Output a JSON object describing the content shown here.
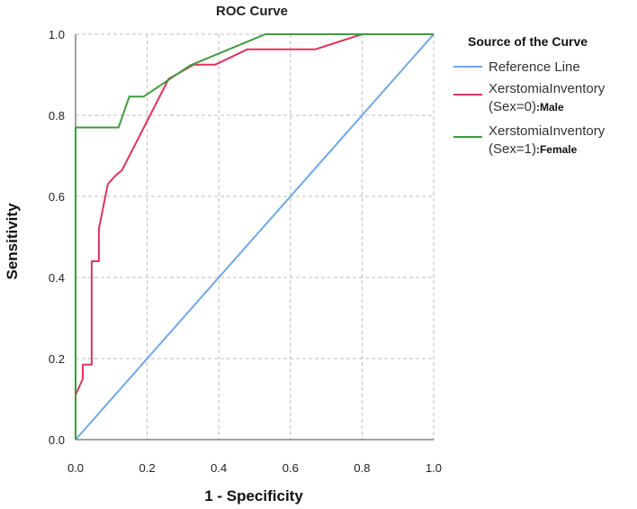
{
  "chart_data": {
    "type": "line",
    "title": "ROC Curve",
    "xlabel": "1 - Specificity",
    "ylabel": "Sensitivity",
    "xlim": [
      0,
      1
    ],
    "ylim": [
      0,
      1
    ],
    "xticks": [
      "0.0",
      "0.2",
      "0.4",
      "0.6",
      "0.8",
      "1.0"
    ],
    "yticks": [
      "0.0",
      "0.2",
      "0.4",
      "0.6",
      "0.8",
      "1.0"
    ],
    "grid": true,
    "legend": {
      "title": "Source of the Curve",
      "placement": "right"
    },
    "series": [
      {
        "name": "Reference Line",
        "legend_lines": [
          "Reference Line"
        ],
        "color": "#6fa8e8",
        "points": [
          [
            0,
            0
          ],
          [
            1,
            1
          ]
        ]
      },
      {
        "name": "XerstomiaInventory (Sex=0):Male",
        "legend_lines": [
          "XerstomiaInventory",
          "(Sex=0)"
        ],
        "legend_suffix": ":Male",
        "color": "#e0325a",
        "points": [
          [
            0,
            0
          ],
          [
            0,
            0.11
          ],
          [
            0.02,
            0.15
          ],
          [
            0.02,
            0.185
          ],
          [
            0.045,
            0.185
          ],
          [
            0.045,
            0.44
          ],
          [
            0.065,
            0.44
          ],
          [
            0.065,
            0.52
          ],
          [
            0.09,
            0.63
          ],
          [
            0.11,
            0.65
          ],
          [
            0.13,
            0.665
          ],
          [
            0.26,
            0.89
          ],
          [
            0.33,
            0.925
          ],
          [
            0.39,
            0.925
          ],
          [
            0.48,
            0.963
          ],
          [
            0.67,
            0.963
          ],
          [
            0.8,
            1.0
          ],
          [
            1.0,
            1.0
          ]
        ]
      },
      {
        "name": "XerstomiaInventory (Sex=1):Female",
        "legend_lines": [
          "XerstomiaInventory",
          "(Sex=1)"
        ],
        "legend_suffix": ":Female",
        "color": "#3f9a3f",
        "points": [
          [
            0,
            0
          ],
          [
            0,
            0.77
          ],
          [
            0.12,
            0.77
          ],
          [
            0.15,
            0.846
          ],
          [
            0.19,
            0.846
          ],
          [
            0.32,
            0.923
          ],
          [
            0.53,
            1.0
          ],
          [
            1.0,
            1.0
          ]
        ]
      }
    ]
  }
}
